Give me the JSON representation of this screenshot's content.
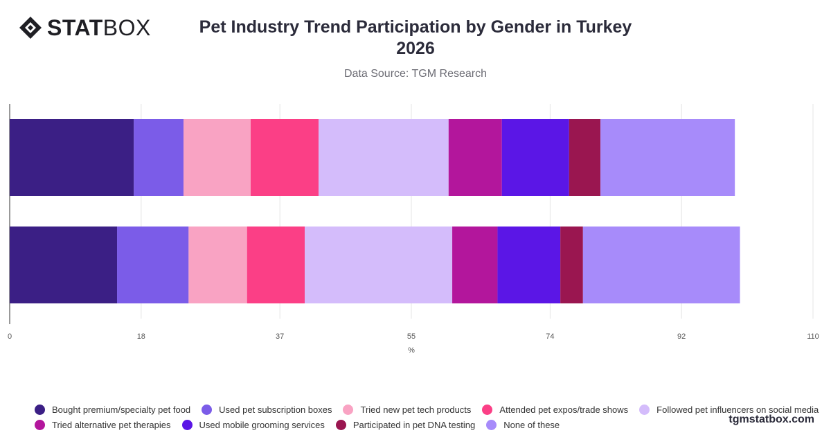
{
  "header": {
    "logo_text_bold": "STAT",
    "logo_text_light": "BOX",
    "title_line1": "Pet Industry Trend Participation by Gender in Turkey",
    "title_line2": "2026",
    "subtitle": "Data Source: TGM Research"
  },
  "brand": "tgmstatbox.com",
  "chart_data": {
    "type": "bar",
    "orientation": "horizontal",
    "stacked": true,
    "categories": [
      "",
      ""
    ],
    "xlabel": "%",
    "ylabel": "",
    "xlim": [
      0,
      110
    ],
    "xticks": [
      0,
      18,
      37,
      55,
      74,
      92,
      110
    ],
    "grid": true,
    "legend_position": "bottom",
    "series": [
      {
        "name": "Bought premium/specialty pet food",
        "color": "#3b1f85",
        "values": [
          17.0,
          14.7
        ]
      },
      {
        "name": "Used pet subscription boxes",
        "color": "#7b5ce8",
        "values": [
          6.8,
          9.8
        ]
      },
      {
        "name": "Tried new pet tech products",
        "color": "#f9a3c3",
        "values": [
          9.2,
          8.0
        ]
      },
      {
        "name": "Attended pet expos/trade shows",
        "color": "#fb3f86",
        "values": [
          9.3,
          7.9
        ]
      },
      {
        "name": "Followed pet influencers on social media",
        "color": "#d4bcfb",
        "values": [
          17.8,
          20.2
        ]
      },
      {
        "name": "Tried alternative pet therapies",
        "color": "#b3169c",
        "values": [
          7.3,
          6.2
        ]
      },
      {
        "name": "Used mobile grooming services",
        "color": "#5b16e6",
        "values": [
          9.2,
          8.6
        ]
      },
      {
        "name": "Participated in pet DNA testing",
        "color": "#9a1650",
        "values": [
          4.3,
          3.1
        ]
      },
      {
        "name": "None of these",
        "color": "#a78bfa",
        "values": [
          18.4,
          21.5
        ]
      }
    ]
  }
}
